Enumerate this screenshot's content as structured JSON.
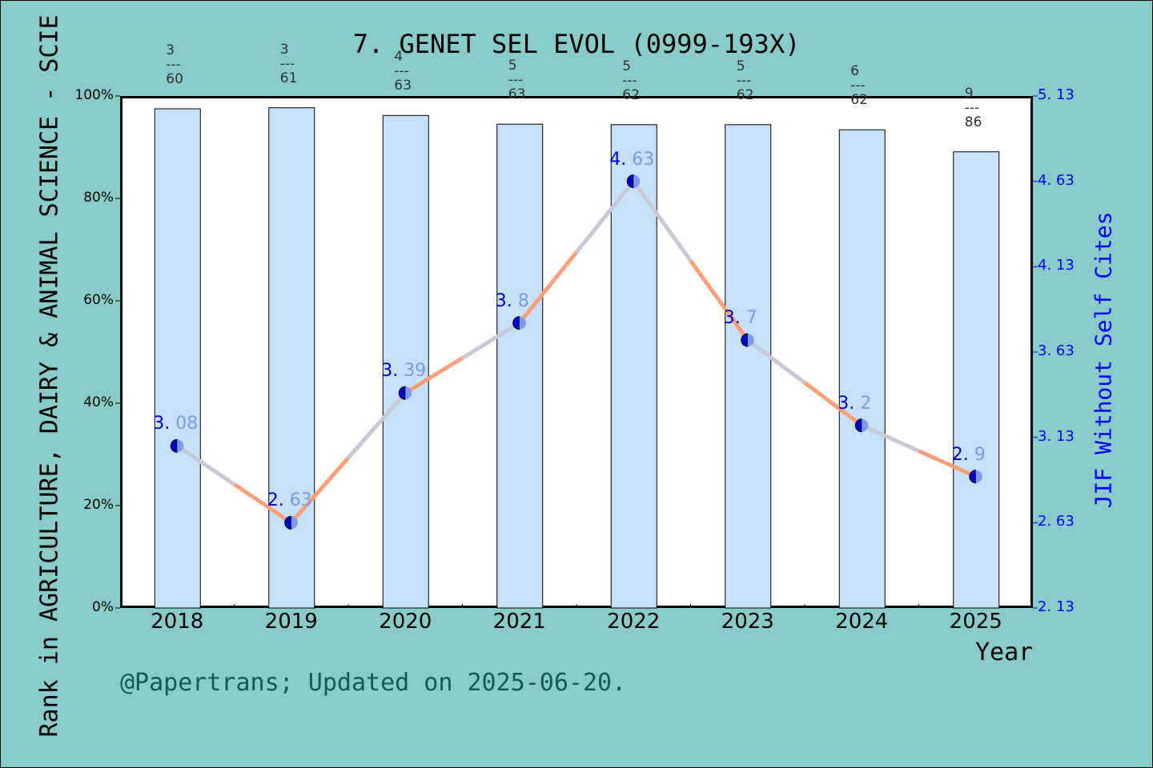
{
  "chart_data": {
    "type": "bar+line",
    "title": "7. GENET SEL EVOL (0999-193X)",
    "xlabel": "Year",
    "ylabel_left": "Rank in AGRICULTURE, DAIRY & ANIMAL SCIENCE - SCIE",
    "ylabel_right": "JIF Without Self Cites",
    "categories": [
      "2018",
      "2019",
      "2020",
      "2021",
      "2022",
      "2023",
      "2024",
      "2025"
    ],
    "series": [
      {
        "name": "Rank percentile",
        "type": "bar",
        "axis": "left",
        "values": [
          97.5,
          97.7,
          96.2,
          94.5,
          94.4,
          94.4,
          93.4,
          89.1
        ]
      },
      {
        "name": "JIF Without Self Cites",
        "type": "line",
        "axis": "right",
        "values": [
          3.08,
          2.63,
          3.39,
          3.8,
          4.63,
          3.7,
          3.2,
          2.9
        ]
      }
    ],
    "rank_annotations": [
      {
        "rank": "3",
        "total": "60"
      },
      {
        "rank": "3",
        "total": "61"
      },
      {
        "rank": "4",
        "total": "63"
      },
      {
        "rank": "5",
        "total": "63"
      },
      {
        "rank": "5",
        "total": "62"
      },
      {
        "rank": "5",
        "total": "62"
      },
      {
        "rank": "6",
        "total": "62"
      },
      {
        "rank": "9",
        "total": "86"
      }
    ],
    "point_labels": [
      {
        "a": "3.",
        "b": "08"
      },
      {
        "a": "2.",
        "b": "63"
      },
      {
        "a": "3.",
        "b": "39"
      },
      {
        "a": "3.",
        "b": "8"
      },
      {
        "a": "4.",
        "b": "63"
      },
      {
        "a": "3.",
        "b": "7"
      },
      {
        "a": "3.",
        "b": "2"
      },
      {
        "a": "2.",
        "b": "9"
      }
    ],
    "yticks_left": [
      "100%",
      "80%",
      "60%",
      "40%",
      "20%",
      "0%"
    ],
    "yticks_right": [
      "5. 13",
      "4. 63",
      "4. 13",
      "3. 63",
      "3. 13",
      "2. 63",
      "2. 13"
    ],
    "ylim_left": [
      0,
      100
    ],
    "ylim_right": [
      2.13,
      5.13
    ],
    "grid": false,
    "colors": {
      "background": "#88CBC9",
      "bar": "#C5E0F7",
      "line_orange": "#FF9F7A",
      "line_gray": "#C8C8D8",
      "marker_dark": "#0000CC",
      "marker_light": "#7A9BE6",
      "right_axis": "#0000FF"
    }
  },
  "footer": "@Papertrans; Updated on 2025-06-20."
}
